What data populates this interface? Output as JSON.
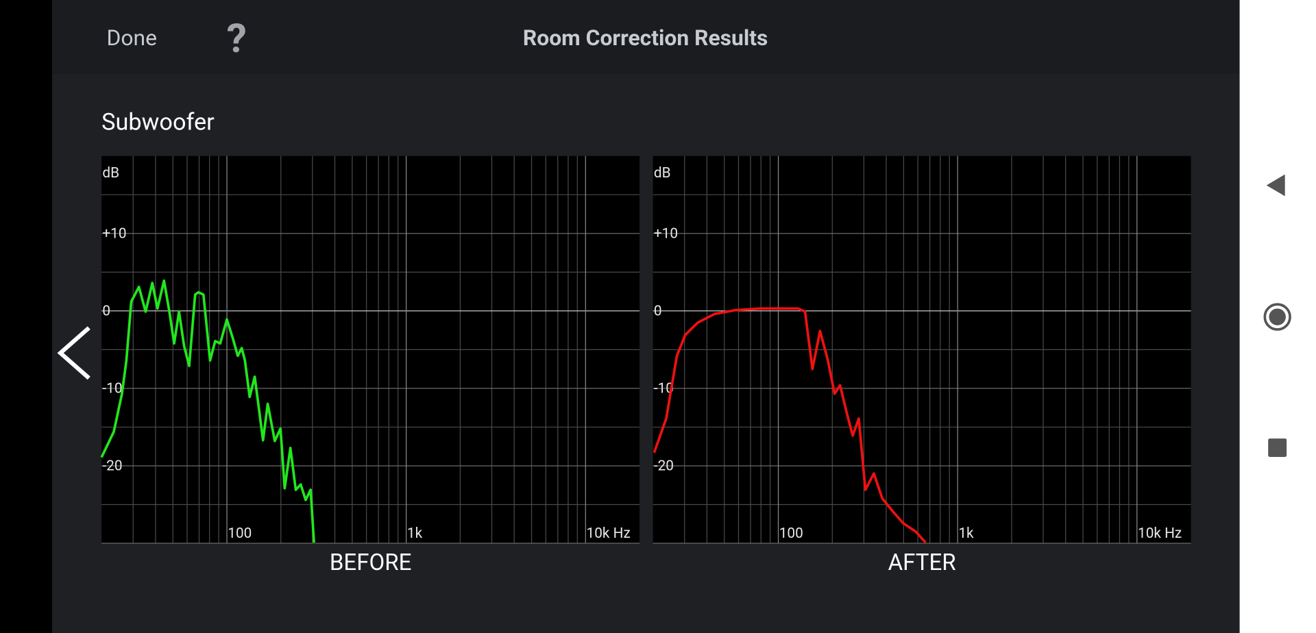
{
  "header": {
    "done": "Done",
    "help": "?",
    "title": "Room Correction Results"
  },
  "section_title": "Subwoofer",
  "chart_data": [
    {
      "type": "line",
      "title": "BEFORE",
      "ylabel": "dB",
      "xscale": "log",
      "color": "#22e61e",
      "xlim": [
        20,
        20000
      ],
      "ylim": [
        -30,
        20
      ],
      "xticks": [
        {
          "value": 100,
          "label": "100"
        },
        {
          "value": 1000,
          "label": "1k"
        },
        {
          "value": 10000,
          "label": "10k Hz"
        }
      ],
      "xgrid": [
        30,
        40,
        50,
        60,
        70,
        80,
        90,
        200,
        300,
        400,
        500,
        600,
        700,
        800,
        900,
        2000,
        3000,
        4000,
        5000,
        6000,
        7000,
        8000,
        9000
      ],
      "yticks": [
        {
          "value": 10,
          "label": "+10"
        },
        0,
        -10,
        -20
      ],
      "ygrid": [
        15,
        5,
        -5,
        -15,
        -25
      ],
      "x": [
        20,
        23.4,
        26,
        27.5,
        29.3,
        32.3,
        35.2,
        38.4,
        41,
        44.6,
        47.6,
        50.8,
        54.1,
        57.7,
        61.6,
        66.5,
        69.4,
        74,
        80.6,
        86,
        91.8,
        100,
        107.8,
        115,
        121,
        126,
        134,
        143,
        159,
        169,
        185,
        199,
        210,
        226,
        242,
        258,
        275,
        293,
        306
      ],
      "values": [
        -18.9,
        -15.6,
        -10.7,
        -6.4,
        1.2,
        3.1,
        -0.1,
        3.6,
        0.3,
        3.9,
        0.1,
        -4.2,
        -0.1,
        -4.5,
        -7.1,
        2.1,
        2.4,
        2.1,
        -6.4,
        -3.9,
        -4.2,
        -1.1,
        -3.5,
        -5.8,
        -4.8,
        -6.4,
        -11.1,
        -8.5,
        -16.7,
        -12.0,
        -16.8,
        -15.2,
        -22.9,
        -17.7,
        -23.1,
        -22.4,
        -24.4,
        -23.1,
        -29.9
      ]
    },
    {
      "type": "line",
      "title": "AFTER",
      "ylabel": "dB",
      "xscale": "log",
      "color": "#ee1111",
      "xlim": [
        20,
        20000
      ],
      "ylim": [
        -30,
        20
      ],
      "xticks": [
        {
          "value": 100,
          "label": "100"
        },
        {
          "value": 1000,
          "label": "1k"
        },
        {
          "value": 10000,
          "label": "10k Hz"
        }
      ],
      "xgrid": [
        30,
        40,
        50,
        60,
        70,
        80,
        90,
        200,
        300,
        400,
        500,
        600,
        700,
        800,
        900,
        2000,
        3000,
        4000,
        5000,
        6000,
        7000,
        8000,
        9000
      ],
      "yticks": [
        {
          "value": 10,
          "label": "+10"
        },
        0,
        -10,
        -20
      ],
      "ygrid": [
        15,
        5,
        -5,
        -15,
        -25
      ],
      "x": [
        20.3,
        23.7,
        27.2,
        30.3,
        35.6,
        44.1,
        57.8,
        79.8,
        129,
        141,
        155,
        171,
        189,
        206,
        221,
        242,
        260,
        281,
        306,
        341,
        380,
        432,
        497,
        584,
        663
      ],
      "values": [
        -18.3,
        -13.9,
        -5.8,
        -3.1,
        -1.5,
        -0.4,
        0.1,
        0.3,
        0.3,
        -0.1,
        -7.5,
        -2.6,
        -6.4,
        -10.7,
        -9.6,
        -13.4,
        -16.1,
        -13.9,
        -23.1,
        -21.0,
        -24.2,
        -25.8,
        -27.4,
        -28.5,
        -29.9
      ]
    }
  ]
}
